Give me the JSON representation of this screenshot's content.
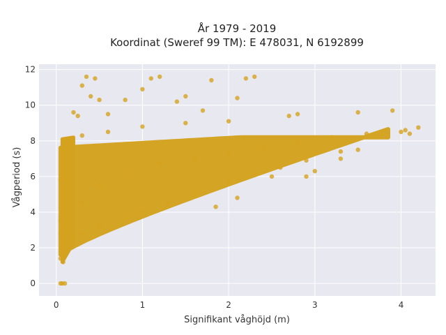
{
  "chart_data": {
    "type": "scatter",
    "title_line1": "År 1979 - 2019",
    "title_line2": "Koordinat (Sweref 99 TM): E 478031, N 6192899",
    "xlabel": "Signifikant våghöjd (m)",
    "ylabel": "Vågperiod (s)",
    "xlim": [
      -0.2,
      4.4
    ],
    "ylim": [
      -0.7,
      12.3
    ],
    "x_ticks": [
      0,
      1,
      2,
      3,
      4
    ],
    "y_ticks": [
      0,
      2,
      4,
      6,
      8,
      10,
      12
    ],
    "grid": true,
    "marker_color": "#D4A21E",
    "background_color": "#E8E8F0",
    "grid_color": "#FFFFFF",
    "points": [
      [
        0.05,
        0.0
      ],
      [
        0.07,
        0.0
      ],
      [
        0.1,
        0.0
      ],
      [
        0.05,
        1.4
      ],
      [
        0.08,
        1.2
      ],
      [
        0.1,
        1.6
      ],
      [
        0.15,
        2.0
      ],
      [
        0.2,
        2.5
      ],
      [
        0.3,
        2.8
      ],
      [
        0.5,
        3.2
      ],
      [
        0.8,
        3.7
      ],
      [
        1.0,
        4.0
      ],
      [
        1.3,
        4.5
      ],
      [
        1.6,
        5.1
      ],
      [
        2.0,
        5.7
      ],
      [
        2.3,
        6.1
      ],
      [
        2.6,
        6.5
      ],
      [
        2.9,
        6.9
      ],
      [
        3.3,
        7.4
      ],
      [
        0.3,
        4.5
      ],
      [
        0.5,
        5.5
      ],
      [
        0.8,
        6.2
      ],
      [
        1.2,
        6.7
      ],
      [
        1.6,
        7.0
      ],
      [
        2.0,
        7.3
      ],
      [
        2.4,
        7.6
      ],
      [
        2.8,
        7.9
      ],
      [
        3.2,
        8.2
      ],
      [
        3.6,
        8.4
      ],
      [
        4.0,
        8.5
      ],
      [
        0.1,
        8.0
      ],
      [
        0.3,
        8.3
      ],
      [
        0.6,
        8.5
      ],
      [
        1.0,
        8.8
      ],
      [
        1.5,
        9.0
      ],
      [
        2.0,
        9.1
      ],
      [
        2.7,
        9.4
      ],
      [
        3.5,
        9.6
      ],
      [
        3.9,
        9.7
      ],
      [
        4.05,
        8.6
      ],
      [
        4.1,
        8.4
      ],
      [
        4.2,
        8.75
      ],
      [
        0.35,
        11.6
      ],
      [
        0.45,
        11.5
      ],
      [
        0.3,
        11.1
      ],
      [
        0.5,
        10.3
      ],
      [
        0.4,
        10.5
      ],
      [
        1.1,
        11.5
      ],
      [
        1.2,
        11.6
      ],
      [
        1.4,
        10.2
      ],
      [
        1.5,
        10.5
      ],
      [
        1.8,
        11.4
      ],
      [
        2.2,
        11.5
      ],
      [
        2.3,
        11.6
      ],
      [
        2.1,
        10.4
      ],
      [
        1.0,
        10.9
      ],
      [
        0.8,
        10.3
      ],
      [
        0.2,
        9.6
      ],
      [
        0.25,
        9.4
      ],
      [
        0.6,
        9.5
      ],
      [
        1.7,
        9.7
      ],
      [
        2.8,
        9.5
      ],
      [
        2.5,
        6.0
      ],
      [
        2.9,
        6.0
      ],
      [
        3.0,
        6.3
      ],
      [
        3.5,
        7.5
      ],
      [
        3.3,
        7.0
      ],
      [
        1.85,
        4.3
      ],
      [
        2.1,
        4.8
      ],
      [
        0.05,
        2.8
      ],
      [
        0.05,
        3.5
      ],
      [
        0.05,
        5.8
      ]
    ]
  }
}
